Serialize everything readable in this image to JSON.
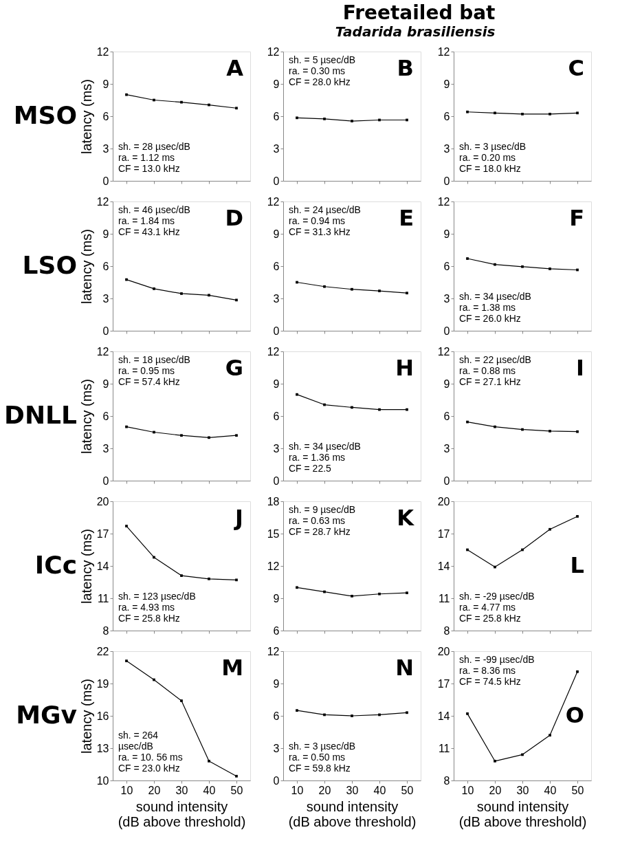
{
  "chart_data": [
    {
      "type": "line",
      "ylabel": "latency (ms)",
      "annotations": [
        "A",
        "sh. = 28 µsec/dB\nra. = 1.12 ms\nCF = 13.0 kHz",
        "MSO"
      ],
      "x": [
        10,
        20,
        30,
        40,
        50
      ],
      "series": [
        {
          "color": "#000000",
          "values": [
            8.0,
            7.5,
            7.3,
            7.05,
            6.75
          ]
        }
      ],
      "xlim": [
        5,
        55
      ],
      "xticks": [
        10,
        20,
        30,
        40,
        50
      ],
      "ylim": [
        0,
        12
      ],
      "yticks": [
        0,
        3,
        6,
        9,
        12
      ],
      "tick_labels": "y",
      "marker": "square",
      "line_style": "solid"
    },
    {
      "type": "line",
      "title": "Freetailed bat",
      "subtitle": "Tadarida brasiliensis",
      "annotations": [
        "B",
        "sh. = 5 µsec/dB\nra. = 0.30 ms\nCF = 28.0 kHz"
      ],
      "x": [
        10,
        20,
        30,
        40,
        50
      ],
      "series": [
        {
          "color": "#000000",
          "values": [
            5.85,
            5.75,
            5.55,
            5.65,
            5.65
          ]
        }
      ],
      "xlim": [
        5,
        55
      ],
      "xticks": [
        10,
        20,
        30,
        40,
        50
      ],
      "ylim": [
        0,
        12
      ],
      "yticks": [
        0,
        3,
        6,
        9,
        12
      ],
      "tick_labels": "y",
      "marker": "square",
      "line_style": "solid"
    },
    {
      "type": "line",
      "annotations": [
        "C",
        "sh. = 3 µsec/dB\nra. = 0.20 ms\nCF = 18.0 kHz"
      ],
      "x": [
        10,
        20,
        30,
        40,
        50
      ],
      "series": [
        {
          "color": "#000000",
          "values": [
            6.4,
            6.3,
            6.2,
            6.2,
            6.3
          ]
        }
      ],
      "xlim": [
        5,
        55
      ],
      "xticks": [
        10,
        20,
        30,
        40,
        50
      ],
      "ylim": [
        0,
        12
      ],
      "yticks": [
        0,
        3,
        6,
        9,
        12
      ],
      "tick_labels": "y",
      "marker": "square",
      "line_style": "solid"
    },
    {
      "type": "line",
      "ylabel": "latency (ms)",
      "annotations": [
        "D",
        "sh. = 46 µsec/dB\nra. = 1.84 ms\nCF = 43.1 kHz",
        "LSO"
      ],
      "x": [
        10,
        20,
        30,
        40,
        50
      ],
      "series": [
        {
          "color": "#000000",
          "values": [
            4.75,
            3.9,
            3.45,
            3.3,
            2.85
          ]
        }
      ],
      "xlim": [
        5,
        55
      ],
      "xticks": [
        10,
        20,
        30,
        40,
        50
      ],
      "ylim": [
        0,
        12
      ],
      "yticks": [
        0,
        3,
        6,
        9,
        12
      ],
      "tick_labels": "y",
      "marker": "square",
      "line_style": "solid"
    },
    {
      "type": "line",
      "annotations": [
        "E",
        "sh. = 24 µsec/dB\nra. = 0.94 ms\nCF = 31.3 kHz"
      ],
      "x": [
        10,
        20,
        30,
        40,
        50
      ],
      "series": [
        {
          "color": "#000000",
          "values": [
            4.5,
            4.1,
            3.85,
            3.7,
            3.5
          ]
        }
      ],
      "xlim": [
        5,
        55
      ],
      "xticks": [
        10,
        20,
        30,
        40,
        50
      ],
      "ylim": [
        0,
        12
      ],
      "yticks": [
        0,
        3,
        6,
        9,
        12
      ],
      "tick_labels": "y",
      "marker": "square",
      "line_style": "solid"
    },
    {
      "type": "line",
      "annotations": [
        "F",
        "sh. = 34 µsec/dB\nra. = 1.38 ms\nCF = 26.0 kHz"
      ],
      "x": [
        10,
        20,
        30,
        40,
        50
      ],
      "series": [
        {
          "color": "#000000",
          "values": [
            6.7,
            6.15,
            5.95,
            5.75,
            5.65
          ]
        }
      ],
      "xlim": [
        5,
        55
      ],
      "xticks": [
        10,
        20,
        30,
        40,
        50
      ],
      "ylim": [
        0,
        12
      ],
      "yticks": [
        0,
        3,
        6,
        9,
        12
      ],
      "tick_labels": "y",
      "marker": "square",
      "line_style": "solid"
    },
    {
      "type": "line",
      "ylabel": "latency (ms)",
      "annotations": [
        "G",
        "sh. = 18 µsec/dB\nra. = 0.95 ms\nCF = 57.4 kHz",
        "DNLL"
      ],
      "x": [
        10,
        20,
        30,
        40,
        50
      ],
      "series": [
        {
          "color": "#000000",
          "values": [
            5.0,
            4.5,
            4.2,
            4.0,
            4.2
          ]
        }
      ],
      "xlim": [
        5,
        55
      ],
      "xticks": [
        10,
        20,
        30,
        40,
        50
      ],
      "ylim": [
        0,
        12
      ],
      "yticks": [
        0,
        3,
        6,
        9,
        12
      ],
      "tick_labels": "y",
      "marker": "square",
      "line_style": "solid"
    },
    {
      "type": "line",
      "annotations": [
        "H",
        "sh. = 34 µsec/dB\nra. = 1.36 ms\nCF = 22.5"
      ],
      "x": [
        10,
        20,
        30,
        40,
        50
      ],
      "series": [
        {
          "color": "#000000",
          "values": [
            8.0,
            7.05,
            6.8,
            6.6,
            6.6
          ]
        }
      ],
      "xlim": [
        5,
        55
      ],
      "xticks": [
        10,
        20,
        30,
        40,
        50
      ],
      "ylim": [
        0,
        12
      ],
      "yticks": [
        0,
        3,
        6,
        9,
        12
      ],
      "tick_labels": "y",
      "marker": "square",
      "line_style": "solid"
    },
    {
      "type": "line",
      "annotations": [
        "I",
        "sh. = 22 µsec/dB\nra. = 0.88 ms\nCF = 27.1 kHz"
      ],
      "x": [
        10,
        20,
        30,
        40,
        50
      ],
      "series": [
        {
          "color": "#000000",
          "values": [
            5.45,
            5.0,
            4.75,
            4.6,
            4.55
          ]
        }
      ],
      "xlim": [
        5,
        55
      ],
      "xticks": [
        10,
        20,
        30,
        40,
        50
      ],
      "ylim": [
        0,
        12
      ],
      "yticks": [
        0,
        3,
        6,
        9,
        12
      ],
      "tick_labels": "y",
      "marker": "square",
      "line_style": "solid"
    },
    {
      "type": "line",
      "ylabel": "latency (ms)",
      "annotations": [
        "J",
        "sh. = 123 µsec/dB\nra. = 4.93 ms\nCF = 25.8 kHz",
        "ICc"
      ],
      "x": [
        10,
        20,
        30,
        40,
        50
      ],
      "series": [
        {
          "color": "#000000",
          "values": [
            17.7,
            14.8,
            13.1,
            12.8,
            12.7
          ]
        }
      ],
      "xlim": [
        5,
        55
      ],
      "xticks": [
        10,
        20,
        30,
        40,
        50
      ],
      "ylim": [
        8,
        20
      ],
      "yticks": [
        8,
        11,
        14,
        17,
        20
      ],
      "tick_labels": "y",
      "marker": "square",
      "line_style": "solid"
    },
    {
      "type": "line",
      "annotations": [
        "K",
        "sh. = 9 µsec/dB\nra. = 0.63 ms\nCF = 28.7 kHz"
      ],
      "x": [
        10,
        20,
        30,
        40,
        50
      ],
      "series": [
        {
          "color": "#000000",
          "values": [
            10.0,
            9.6,
            9.2,
            9.4,
            9.5
          ]
        }
      ],
      "xlim": [
        5,
        55
      ],
      "xticks": [
        10,
        20,
        30,
        40,
        50
      ],
      "ylim": [
        6,
        18
      ],
      "yticks": [
        6,
        9,
        12,
        15,
        18
      ],
      "tick_labels": "y",
      "marker": "square",
      "line_style": "solid"
    },
    {
      "type": "line",
      "annotations": [
        "L",
        "sh. = -29 µsec/dB\nra. = 4.77 ms\nCF = 25.8 kHz"
      ],
      "x": [
        10,
        20,
        30,
        40,
        50
      ],
      "series": [
        {
          "color": "#000000",
          "values": [
            15.5,
            13.9,
            15.5,
            17.4,
            18.6
          ]
        }
      ],
      "xlim": [
        5,
        55
      ],
      "xticks": [
        10,
        20,
        30,
        40,
        50
      ],
      "ylim": [
        8,
        20
      ],
      "yticks": [
        8,
        11,
        14,
        17,
        20
      ],
      "tick_labels": "y",
      "marker": "square",
      "line_style": "solid"
    },
    {
      "type": "line",
      "ylabel": "latency (ms)",
      "xlabel": "sound intensity\n(dB above threshold)",
      "annotations": [
        "M",
        "sh. = 264\n          µsec/dB\nra. = 10. 56 ms\nCF = 23.0 kHz",
        "MGv"
      ],
      "x": [
        10,
        20,
        30,
        40,
        50
      ],
      "series": [
        {
          "color": "#000000",
          "values": [
            21.1,
            19.35,
            17.4,
            11.8,
            10.4
          ]
        }
      ],
      "xlim": [
        5,
        55
      ],
      "xticks": [
        10,
        20,
        30,
        40,
        50
      ],
      "ylim": [
        10,
        22
      ],
      "yticks": [
        10,
        13,
        16,
        19,
        22
      ],
      "marker": "square",
      "line_style": "solid"
    },
    {
      "type": "line",
      "xlabel": "sound intensity\n(dB above threshold)",
      "annotations": [
        "N",
        "sh. = 3 µsec/dB\nra. = 0.50 ms\nCF = 59.8 kHz"
      ],
      "x": [
        10,
        20,
        30,
        40,
        50
      ],
      "series": [
        {
          "color": "#000000",
          "values": [
            6.5,
            6.1,
            6.0,
            6.1,
            6.3
          ]
        }
      ],
      "xlim": [
        5,
        55
      ],
      "xticks": [
        10,
        20,
        30,
        40,
        50
      ],
      "ylim": [
        0,
        12
      ],
      "yticks": [
        0,
        3,
        6,
        9,
        12
      ],
      "marker": "square",
      "line_style": "solid"
    },
    {
      "type": "line",
      "xlabel": "sound intensity\n(dB above threshold)",
      "annotations": [
        "O",
        "sh. = -99 µsec/dB\nra. = 8.36 ms\nCF = 74.5 kHz"
      ],
      "x": [
        10,
        20,
        30,
        40,
        50
      ],
      "series": [
        {
          "color": "#000000",
          "values": [
            14.2,
            9.8,
            10.4,
            12.2,
            18.1
          ]
        }
      ],
      "xlim": [
        5,
        55
      ],
      "xticks": [
        10,
        20,
        30,
        40,
        50
      ],
      "ylim": [
        8,
        20
      ],
      "yticks": [
        8,
        11,
        14,
        17,
        20
      ],
      "marker": "square",
      "line_style": "solid"
    }
  ]
}
